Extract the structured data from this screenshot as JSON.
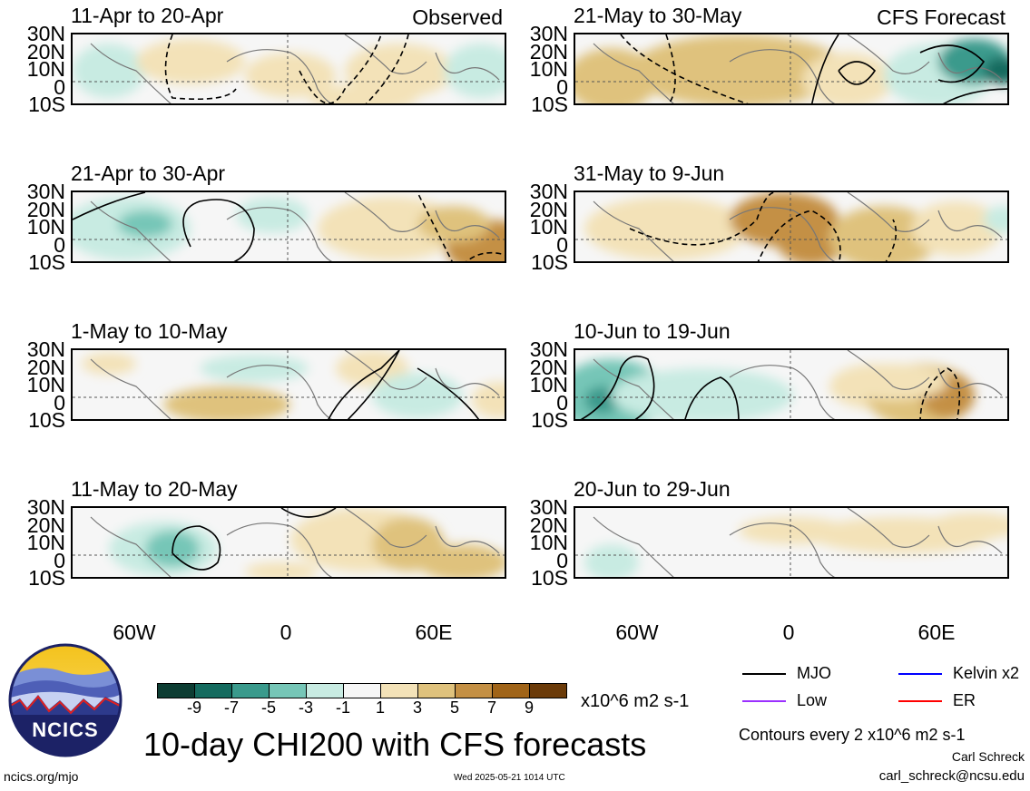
{
  "panels": [
    {
      "title": "11-Apr to 20-Apr",
      "tag": "Observed"
    },
    {
      "title": "21-Apr to 30-Apr",
      "tag": ""
    },
    {
      "title": "1-May to 10-May",
      "tag": ""
    },
    {
      "title": "11-May to 20-May",
      "tag": ""
    },
    {
      "title": "21-May to 30-May",
      "tag": "CFS Forecast"
    },
    {
      "title": "31-May to 9-Jun",
      "tag": ""
    },
    {
      "title": "10-Jun to 19-Jun",
      "tag": ""
    },
    {
      "title": "20-Jun to 29-Jun",
      "tag": ""
    }
  ],
  "lat_labels": [
    "30N",
    "20N",
    "10N",
    "0",
    "10S"
  ],
  "lon_labels": [
    "60W",
    "0",
    "60E"
  ],
  "colorbar": {
    "colors": [
      "#0d3d33",
      "#156b5f",
      "#3a9a8c",
      "#76c6b7",
      "#c8ebe2",
      "#f6f6f6",
      "#f3e2b8",
      "#dfc27d",
      "#c49044",
      "#a06418",
      "#6b3b09"
    ],
    "ticks": [
      "-9",
      "-7",
      "-5",
      "-3",
      "-1",
      "1",
      "3",
      "5",
      "7",
      "9"
    ],
    "units": "x10^6 m2 s-1"
  },
  "legend": [
    {
      "label": "MJO",
      "color": "#000000"
    },
    {
      "label": "Kelvin x2",
      "color": "#0000ff"
    },
    {
      "label": "Low",
      "color": "#9b30ff"
    },
    {
      "label": "ER",
      "color": "#ff0000"
    }
  ],
  "main_title": "10-day CHI200 with CFS forecasts",
  "contours_note": "Contours every 2 x10^6 m2 s-1",
  "author_name": "Carl Schreck",
  "author_email": "carl_schreck@ncsu.edu",
  "website": "ncics.org/mjo",
  "timestamp": "Wed 2025-05-21 1014 UTC",
  "logo_text": "NCICS"
}
